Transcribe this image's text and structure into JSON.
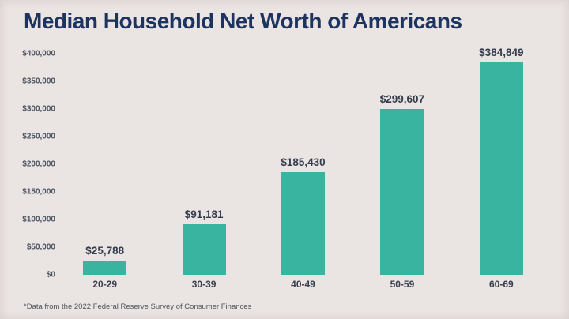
{
  "chart_data": {
    "type": "bar",
    "title": "Median Household Net Worth of Americans",
    "categories": [
      "20-29",
      "30-39",
      "40-49",
      "50-59",
      "60-69"
    ],
    "values": [
      25788,
      91181,
      185430,
      299607,
      384849
    ],
    "value_labels": [
      "$25,788",
      "$91,181",
      "$185,430",
      "$299,607",
      "$384,849"
    ],
    "y_ticks": [
      "$400,000",
      "$350,000",
      "$300,000",
      "$250,000",
      "$200,000",
      "$150,000",
      "$100,000",
      "$50,000",
      "$0"
    ],
    "ylim": [
      0,
      400000
    ],
    "xlabel": "",
    "ylabel": "",
    "grid": false,
    "legend": false,
    "colors": {
      "bar": "#39B4A0",
      "background": "#EAE4E2",
      "title": "#1E3460",
      "value_label": "#333C4E",
      "axis_label": "#4C5362"
    }
  },
  "footnote": "*Data from the 2022 Federal Reserve Survey of Consumer Finances"
}
